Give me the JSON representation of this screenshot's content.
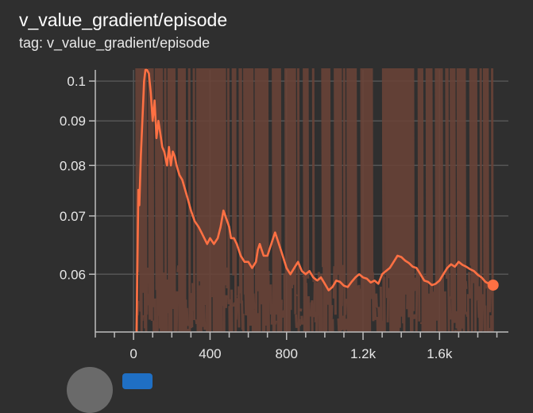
{
  "card": {
    "title": "v_value_gradient/episode",
    "subtitle": "tag: v_value_gradient/episode"
  },
  "colors": {
    "background": "#2f2f2f",
    "smoothed_line": "#ff7043",
    "raw_line": "#6b4337",
    "grid": "#555555",
    "axis": "#bdbdbd"
  },
  "chart_data": {
    "type": "line",
    "title": "",
    "xlabel": "",
    "ylabel": "",
    "y_scale": "log",
    "grid": true,
    "xlim": [
      -200,
      1960
    ],
    "ylim": [
      0.0515,
      0.103
    ],
    "x_ticks": [
      0,
      400,
      800,
      1200,
      1600
    ],
    "x_tick_labels": [
      "0",
      "400",
      "800",
      "1.2k",
      "1.6k"
    ],
    "y_ticks": [
      0.06,
      0.07,
      0.08,
      0.09,
      0.1
    ],
    "y_tick_labels": [
      "0.06",
      "0.07",
      "0.08",
      "0.09",
      "0.1"
    ],
    "series": [
      {
        "role": "smoothed",
        "x": [
          15,
          25,
          30,
          38,
          45,
          55,
          62,
          70,
          80,
          90,
          100,
          110,
          120,
          130,
          140,
          150,
          160,
          175,
          185,
          195,
          205,
          215,
          225,
          240,
          255,
          270,
          285,
          300,
          320,
          340,
          355,
          370,
          385,
          400,
          420,
          440,
          455,
          470,
          480,
          490,
          500,
          510,
          525,
          540,
          560,
          580,
          600,
          620,
          640,
          650,
          660,
          670,
          680,
          700,
          710,
          720,
          730,
          740,
          750,
          760,
          770,
          780,
          790,
          800,
          820,
          840,
          860,
          880,
          900,
          920,
          940,
          960,
          980,
          1000,
          1020,
          1040,
          1060,
          1080,
          1100,
          1120,
          1140,
          1160,
          1180,
          1200,
          1220,
          1240,
          1260,
          1280,
          1300,
          1320,
          1340,
          1360,
          1380,
          1400,
          1420,
          1440,
          1460,
          1480,
          1500,
          1520,
          1540,
          1560,
          1580,
          1600,
          1620,
          1640,
          1660,
          1680,
          1700,
          1720,
          1740,
          1760,
          1780,
          1800,
          1820,
          1840,
          1860,
          1880
        ],
        "y": [
          0.051,
          0.075,
          0.072,
          0.082,
          0.089,
          0.1,
          0.103,
          0.103,
          0.102,
          0.097,
          0.09,
          0.095,
          0.086,
          0.09,
          0.087,
          0.084,
          0.083,
          0.08,
          0.084,
          0.08,
          0.083,
          0.082,
          0.08,
          0.078,
          0.077,
          0.075,
          0.073,
          0.071,
          0.069,
          0.068,
          0.067,
          0.066,
          0.065,
          0.066,
          0.065,
          0.066,
          0.068,
          0.071,
          0.07,
          0.069,
          0.068,
          0.066,
          0.066,
          0.065,
          0.063,
          0.062,
          0.062,
          0.061,
          0.062,
          0.064,
          0.065,
          0.064,
          0.063,
          0.063,
          0.064,
          0.065,
          0.066,
          0.067,
          0.066,
          0.065,
          0.064,
          0.063,
          0.062,
          0.061,
          0.06,
          0.061,
          0.062,
          0.0605,
          0.06,
          0.0605,
          0.0595,
          0.059,
          0.0595,
          0.0585,
          0.0575,
          0.058,
          0.059,
          0.0588,
          0.0582,
          0.058,
          0.0588,
          0.0595,
          0.06,
          0.0595,
          0.0593,
          0.0587,
          0.059,
          0.0585,
          0.06,
          0.0605,
          0.061,
          0.062,
          0.063,
          0.0628,
          0.0622,
          0.0618,
          0.0612,
          0.061,
          0.06,
          0.059,
          0.0588,
          0.0583,
          0.0585,
          0.059,
          0.06,
          0.061,
          0.0616,
          0.0612,
          0.062,
          0.0615,
          0.0612,
          0.0608,
          0.0605,
          0.0599,
          0.0595,
          0.0588,
          0.0585,
          0.0583
        ]
      }
    ]
  }
}
